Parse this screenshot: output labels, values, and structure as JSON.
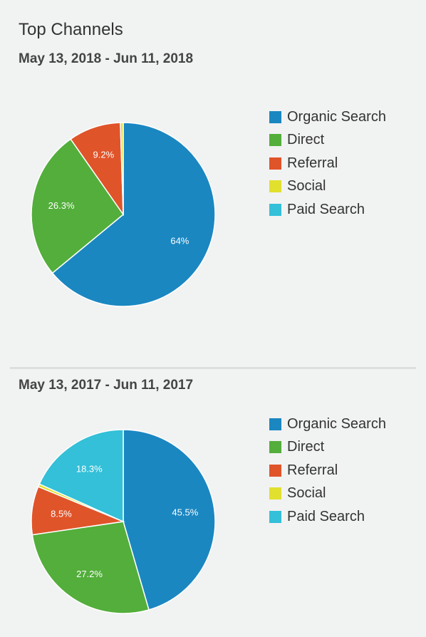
{
  "title": "Top Channels",
  "colors": {
    "organic_search": "#1a87c1",
    "direct": "#53ae3b",
    "referral": "#e0542a",
    "social": "#e2e02e",
    "paid_search": "#33c0d8"
  },
  "chart_data": [
    {
      "type": "pie",
      "title": "May 13, 2018 - Jun 11, 2018",
      "legend_position": "right",
      "slices": [
        {
          "label": "Organic Search",
          "value": 64.0,
          "data_label": "64%",
          "color": "#1a87c1"
        },
        {
          "label": "Direct",
          "value": 26.3,
          "data_label": "26.3%",
          "color": "#53ae3b"
        },
        {
          "label": "Referral",
          "value": 9.2,
          "data_label": "9.2%",
          "color": "#e0542a"
        },
        {
          "label": "Social",
          "value": 0.5,
          "data_label": "",
          "color": "#e2e02e"
        },
        {
          "label": "Paid Search",
          "value": 0.0,
          "data_label": "",
          "color": "#33c0d8"
        }
      ]
    },
    {
      "type": "pie",
      "title": "May 13, 2017 - Jun 11, 2017",
      "legend_position": "right",
      "slices": [
        {
          "label": "Organic Search",
          "value": 45.5,
          "data_label": "45.5%",
          "color": "#1a87c1"
        },
        {
          "label": "Direct",
          "value": 27.2,
          "data_label": "27.2%",
          "color": "#53ae3b"
        },
        {
          "label": "Referral",
          "value": 8.5,
          "data_label": "8.5%",
          "color": "#e0542a"
        },
        {
          "label": "Social",
          "value": 0.5,
          "data_label": "",
          "color": "#e2e02e"
        },
        {
          "label": "Paid Search",
          "value": 18.3,
          "data_label": "18.3%",
          "color": "#33c0d8"
        }
      ]
    }
  ]
}
